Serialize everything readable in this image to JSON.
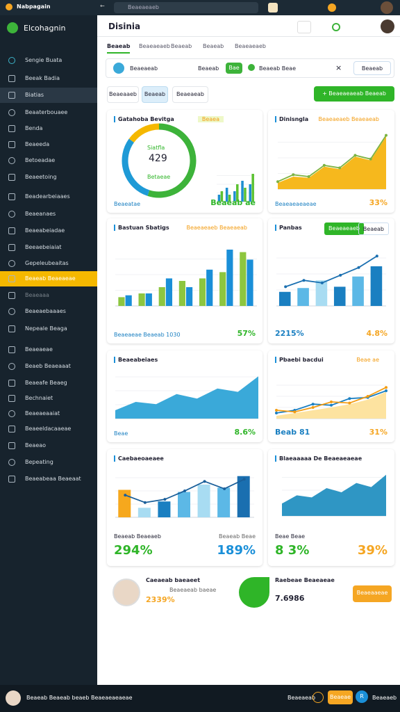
{
  "topbar": {
    "app": "Nabpagain",
    "search": "Beaeaeaeb"
  },
  "sidebar": {
    "brand": "Elcohagnin",
    "active": 13,
    "selected": 2,
    "items": [
      "Sengie Buata",
      "Beeak Badia",
      "Biatias",
      "Beaaterbouaee",
      "Benda",
      "Beaeeda",
      "Betoeadae",
      "Beaeetoing",
      "Beadearbeiaaes",
      "Beaeanaes",
      "Beaeabeiadae",
      "Beeaebeiaiat",
      "Gepeleubeaitas",
      "Beaeab Beaeaeae",
      "Beaeaaa",
      "Beaeaebaaaes",
      "Nepeale Beaga",
      "Beaeaeae",
      "Beaeb Beaeaaat",
      "Beaeafe Beaeg",
      "Bechnaiet",
      "Beaeaeaaiat",
      "Beaeeldacaaeae",
      "Beaeao",
      "Bepeating",
      "Beaeabeaa Beaeaat"
    ]
  },
  "header": {
    "title": "Disinia",
    "tabs": [
      "Beaeab",
      "Beaeaeaeb",
      "Beaeab",
      "Beaeab",
      "Beaeaeaeb"
    ],
    "filters": {
      "user": "Beaeaeab",
      "field": "Beaeab",
      "chip": "Bae",
      "status": "Beaeab Beae",
      "button": "Beaeab"
    },
    "actions": [
      "Beaeaaeb",
      "Beaeab",
      "Beaeaeab"
    ],
    "primary": "+ Beaeaeaeab Beaeab"
  },
  "cards": [
    {
      "title": "Gatahoba Bevitga",
      "badge": "Beaea",
      "center_label": "Siatfla",
      "center_value": "429",
      "center_sub": "Betaeae",
      "footer_left": "Beaeatae",
      "footer_right": "Beaeab ae",
      "chart": {
        "type": "donut",
        "series": [
          {
            "values": [
              55,
              30,
              15
            ],
            "colors": [
              "#3db33a",
              "#1e9ad6",
              "#f5b800"
            ]
          }
        ]
      },
      "chart2": {
        "type": "bar",
        "ylim": [
          0,
          10
        ],
        "series": [
          {
            "type": "bar",
            "color": "#1e8fd0",
            "values": [
              2,
              4,
              3,
              6,
              5
            ]
          },
          {
            "type": "bar",
            "color": "#5cc232",
            "values": [
              3,
              2,
              5,
              4,
              8
            ]
          }
        ]
      }
    },
    {
      "title": "Dinisngla",
      "badge": "Beaeaeaeb Beaeaeab",
      "footer_left": "Beaeaeaeaeae",
      "footer_right": "33%",
      "chart": {
        "type": "area",
        "ylim": [
          0,
          10
        ],
        "series": [
          {
            "type": "area",
            "color": "#f6b81d",
            "values": [
              1,
              2,
              1.8,
              3.6,
              3.2,
              5.2,
              4.6,
              8.4
            ]
          },
          {
            "type": "line",
            "color": "#7cb342",
            "values": [
              1.2,
              2.3,
              2,
              3.8,
              3.4,
              5.4,
              4.8,
              8.6
            ]
          }
        ]
      }
    },
    {
      "title": "Bastuan Sbatigs",
      "badge": "Beaeaeaeb Beaeaeab",
      "footer_left": "Beaeaeae Beaeab 1030",
      "footer_right": "57%",
      "chart": {
        "type": "bar",
        "ylim": [
          0,
          10
        ],
        "series": [
          {
            "type": "bar",
            "color": "#8dc63f",
            "values": [
              1.4,
              2,
              3,
              4,
              4.4,
              5.4,
              8.6
            ]
          },
          {
            "type": "bar",
            "color": "#1a8fd8",
            "values": [
              1.7,
              2,
              4.4,
              3,
              5.8,
              9,
              7.4
            ]
          }
        ]
      }
    },
    {
      "title": "Panbas",
      "buttons": [
        "Beaeaeaeb",
        "Beaeab"
      ],
      "footer_left": "2215%",
      "footer_right": "4.8%",
      "chart": {
        "type": "bar",
        "ylim": [
          0,
          10
        ],
        "series": [
          {
            "type": "bar",
            "color": "#2a9ad8",
            "colors": [
              "#1a7fc1",
              "#5cb8e6",
              "#a8dcf2",
              "#1a7fc1",
              "#5cb8e6",
              "#1a7fc1"
            ],
            "values": [
              2.2,
              2.8,
              4,
              3,
              4.6,
              6.2
            ]
          },
          {
            "type": "line",
            "color": "#1a6fb0",
            "values": [
              3,
              4,
              3.6,
              4.8,
              6,
              7.8
            ]
          }
        ]
      }
    },
    {
      "title": "Beaeabeiaes",
      "footer_left": "Beae",
      "footer_right": "8.6%",
      "chart": {
        "type": "area",
        "ylim": [
          0,
          10
        ],
        "series": [
          {
            "type": "area",
            "color": "#3aa9d9",
            "values": [
              1.5,
              3,
              2.6,
              4.4,
              3.6,
              5.4,
              4.8,
              7.6
            ]
          }
        ]
      }
    },
    {
      "title": "Pbaebi bacdui",
      "badge": "Beae ae",
      "footer_left": "Beab 81",
      "footer_right": "31%",
      "chart": {
        "type": "line",
        "ylim": [
          0,
          8
        ],
        "series": [
          {
            "type": "area",
            "color": "#fde3a0",
            "values": [
              0.5,
              1,
              1.5,
              2,
              2.6,
              3.4,
              4.8
            ]
          },
          {
            "type": "line",
            "color": "#1a7fc1",
            "values": [
              1,
              1.5,
              2.6,
              2.4,
              3.6,
              3.8,
              5
            ]
          },
          {
            "type": "line",
            "color": "#f39c12",
            "values": [
              1.5,
              1.2,
              2,
              3,
              2.8,
              4,
              5.6
            ]
          }
        ]
      }
    },
    {
      "title": "Caebaeoaeaee",
      "footer_left_label": "Beaeab Beaeaeb",
      "footer_right_label": "Beaeab Beae",
      "footer_left": "294%",
      "footer_right": "189%",
      "chart": {
        "type": "bar",
        "ylim": [
          0,
          10
        ],
        "series": [
          {
            "type": "bar",
            "color": "#1a7fc1",
            "colors": [
              "#f6a81d",
              "#a8dcf2",
              "#1a7fc1",
              "#5cb8e6",
              "#a8dcf2",
              "#5cb8e6",
              "#1a6fb0"
            ],
            "values": [
              5.2,
              1.8,
              3,
              4.8,
              6.2,
              5.6,
              7.8
            ]
          },
          {
            "type": "line",
            "color": "#1a5f9a",
            "values": [
              4.2,
              2.8,
              3.4,
              5,
              6.8,
              5.4,
              7.2
            ]
          }
        ]
      }
    },
    {
      "title": "Blaeaaaaa De Beaeaeaeae",
      "footer_left_label": "Beae Beae",
      "footer_left": "8 3%",
      "footer_right": "39%",
      "chart": {
        "type": "area",
        "ylim": [
          0,
          10
        ],
        "series": [
          {
            "type": "area",
            "color": "#2f96c4",
            "values": [
              2.4,
              4,
              3.6,
              5.4,
              4.6,
              6.4,
              5.6,
              8
            ]
          }
        ]
      }
    }
  ],
  "bottom": {
    "name": "Caeaeab baeaeet",
    "sub": "Beaeaeab baeae",
    "value": "2339%",
    "contact": "Raebeae Beaeaeae",
    "contact_value": "7.6986",
    "button": "Beaeaaeae"
  },
  "footer": {
    "text": "Beaeab Beaeab beaeb Beaeaeaeaeae",
    "right": "Beaeaeab",
    "badge": "Beaeae",
    "icon": "R",
    "end": "Beaeaeb"
  }
}
